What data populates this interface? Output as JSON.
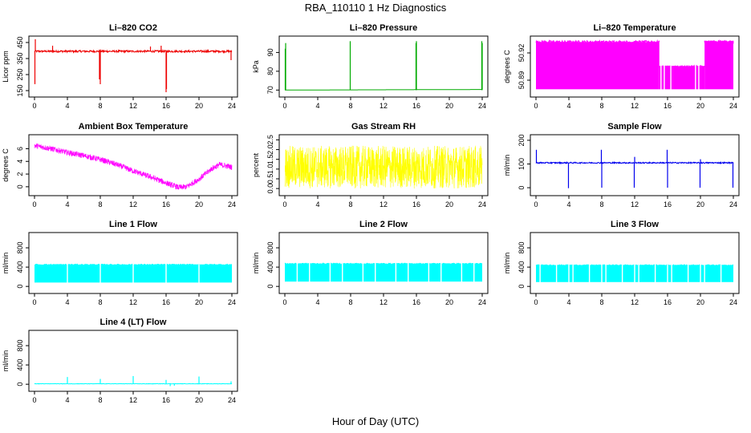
{
  "figure": {
    "title": "RBA_110110  1 Hz Diagnostics",
    "xlabel": "Hour of Day (UTC)"
  },
  "chart_data": [
    {
      "id": "co2",
      "type": "line",
      "title": "Li–820 CO2",
      "ylabel": "Licor ppm",
      "color": "#ee0000",
      "xlim": [
        0,
        24
      ],
      "xticks": [
        0,
        4,
        8,
        12,
        16,
        20,
        24
      ],
      "ylim": [
        130,
        470
      ],
      "yticks": [
        150,
        250,
        350,
        450
      ],
      "base": 395,
      "noise": 12,
      "spikes": [
        [
          0.05,
          190
        ],
        [
          0.1,
          470
        ],
        [
          7.9,
          220
        ],
        [
          8.0,
          190
        ],
        [
          16.0,
          140
        ],
        [
          16.05,
          160
        ],
        [
          23.9,
          340
        ],
        [
          2.2,
          430
        ],
        [
          14.1,
          425
        ],
        [
          15.4,
          430
        ]
      ]
    },
    {
      "id": "pressure",
      "type": "line",
      "title": "Li–820 Pressure",
      "ylabel": "kPa",
      "color": "#00aa00",
      "xlim": [
        0,
        24
      ],
      "xticks": [
        0,
        4,
        8,
        12,
        16,
        20,
        24
      ],
      "ylim": [
        68,
        97
      ],
      "yticks": [
        70,
        80,
        90
      ],
      "base": 70,
      "drift": 0.3,
      "spikes": [
        [
          0.05,
          92
        ],
        [
          0.1,
          95
        ],
        [
          7.95,
          96
        ],
        [
          15.95,
          95
        ],
        [
          16.0,
          96
        ],
        [
          23.95,
          96
        ],
        [
          24.0,
          95
        ]
      ]
    },
    {
      "id": "licor-temp",
      "type": "band",
      "title": "Li–820 Temperature",
      "ylabel": "degrees C",
      "color": "#ff00ff",
      "xlim": [
        0,
        24
      ],
      "xticks": [
        0,
        4,
        8,
        12,
        16,
        20,
        24
      ],
      "ylim": [
        50.875,
        50.935
      ],
      "yticks": [
        50.89,
        50.92
      ],
      "ytick_labels": [
        "50.89",
        "50.92"
      ],
      "segments": [
        [
          0,
          15.0,
          50.88,
          50.932
        ],
        [
          15.0,
          20.5,
          50.88,
          50.905
        ],
        [
          20.5,
          24,
          50.88,
          50.932
        ]
      ],
      "gaps": [
        15.2,
        15.6,
        16.4,
        19.4,
        19.8
      ]
    },
    {
      "id": "box-temp",
      "type": "noisy",
      "title": "Ambient Box Temperature",
      "ylabel": "degrees C",
      "color": "#ff00ff",
      "xlim": [
        0,
        24
      ],
      "xticks": [
        0,
        4,
        8,
        12,
        16,
        20,
        24
      ],
      "ylim": [
        -0.9,
        7.7
      ],
      "yticks": [
        0,
        2,
        4,
        6
      ],
      "curve": [
        [
          0,
          6.5
        ],
        [
          2,
          6.0
        ],
        [
          4,
          5.4
        ],
        [
          6,
          4.9
        ],
        [
          8,
          4.3
        ],
        [
          10,
          3.5
        ],
        [
          12,
          2.5
        ],
        [
          14,
          1.6
        ],
        [
          16,
          0.6
        ],
        [
          17.5,
          -0.1
        ],
        [
          18.5,
          0.0
        ],
        [
          20,
          1.2
        ],
        [
          21.5,
          2.8
        ],
        [
          22.5,
          3.5
        ],
        [
          24,
          3.1
        ]
      ],
      "noise": 0.45
    },
    {
      "id": "rh",
      "type": "noisy",
      "title": "Gas Stream RH",
      "ylabel": "percent",
      "color": "#ffff00",
      "xlim": [
        0,
        24
      ],
      "xticks": [
        0,
        4,
        8,
        12,
        16,
        20,
        24
      ],
      "ylim": [
        -0.2,
        2.6
      ],
      "yticks": [
        0.0,
        0.5,
        1.0,
        1.5,
        2.0,
        2.5
      ],
      "ytick_labels": [
        "0.0",
        "0.5",
        "1.0",
        "1.5",
        "2.0",
        "2.5"
      ],
      "curve": [
        [
          0,
          1.1
        ],
        [
          24,
          1.1
        ]
      ],
      "noise": 1.1
    },
    {
      "id": "sample-flow",
      "type": "line",
      "title": "Sample Flow",
      "ylabel": "ml/min",
      "color": "#0000ee",
      "xlim": [
        0,
        24
      ],
      "xticks": [
        0,
        4,
        8,
        12,
        16,
        20,
        24
      ],
      "ylim": [
        -20,
        210
      ],
      "yticks": [
        0,
        100,
        200
      ],
      "base": 105,
      "noise": 5,
      "spikes": [
        [
          0.05,
          160
        ],
        [
          3.95,
          -2
        ],
        [
          7.95,
          160
        ],
        [
          8.0,
          0
        ],
        [
          11.95,
          0
        ],
        [
          12.0,
          130
        ],
        [
          15.95,
          160
        ],
        [
          16.0,
          0
        ],
        [
          19.95,
          0
        ],
        [
          20.0,
          120
        ],
        [
          23.95,
          0
        ]
      ]
    },
    {
      "id": "line1",
      "type": "band",
      "title": "Line 1 Flow",
      "ylabel": "ml/min",
      "color": "#00ffff",
      "xlim": [
        0,
        24
      ],
      "xticks": [
        0,
        4,
        8,
        12,
        16,
        20,
        24
      ],
      "ylim": [
        -80,
        1050
      ],
      "yticks": [
        0,
        400,
        800
      ],
      "segments": [
        [
          0,
          24,
          80,
          450
        ]
      ],
      "gaps": [
        4.0,
        8.0,
        12.0,
        16.0,
        20.0
      ]
    },
    {
      "id": "line2",
      "type": "band",
      "title": "Line 2 Flow",
      "ylabel": "ml/min",
      "color": "#00ffff",
      "xlim": [
        0,
        24
      ],
      "xticks": [
        0,
        4,
        8,
        12,
        16,
        20,
        24
      ],
      "ylim": [
        -80,
        1050
      ],
      "yticks": [
        0,
        400,
        800
      ],
      "segments": [
        [
          0,
          24,
          100,
          470
        ]
      ],
      "gaps": [
        1.5,
        3.0,
        5.5,
        7.0,
        9.5,
        11.0,
        13.5,
        15.0,
        17.5,
        19.0,
        21.5,
        23.0
      ]
    },
    {
      "id": "line3",
      "type": "band",
      "title": "Line 3 Flow",
      "ylabel": "ml/min",
      "color": "#00ffff",
      "xlim": [
        0,
        24
      ],
      "xticks": [
        0,
        4,
        8,
        12,
        16,
        20,
        24
      ],
      "ylim": [
        -80,
        1050
      ],
      "yticks": [
        0,
        400,
        800
      ],
      "segments": [
        [
          0,
          24,
          90,
          440
        ]
      ],
      "gaps": [
        0.5,
        2.5,
        4.0,
        4.5,
        6.5,
        8.0,
        8.5,
        10.5,
        12.0,
        12.5,
        14.5,
        16.0,
        16.5,
        18.5,
        20.0,
        20.5,
        22.5
      ]
    },
    {
      "id": "line4",
      "type": "line",
      "title": "Line 4 (LT) Flow",
      "ylabel": "ml/min",
      "color": "#00ffff",
      "xlim": [
        0,
        24
      ],
      "xticks": [
        0,
        4,
        8,
        12,
        16,
        20,
        24
      ],
      "ylim": [
        -80,
        1050
      ],
      "yticks": [
        0,
        400,
        800
      ],
      "base": 10,
      "noise": 8,
      "spikes": [
        [
          4.0,
          150
        ],
        [
          8.0,
          110
        ],
        [
          12.0,
          170
        ],
        [
          16.0,
          90
        ],
        [
          20.0,
          160
        ],
        [
          23.9,
          60
        ],
        [
          16.5,
          -40
        ],
        [
          17.0,
          -30
        ]
      ]
    }
  ]
}
